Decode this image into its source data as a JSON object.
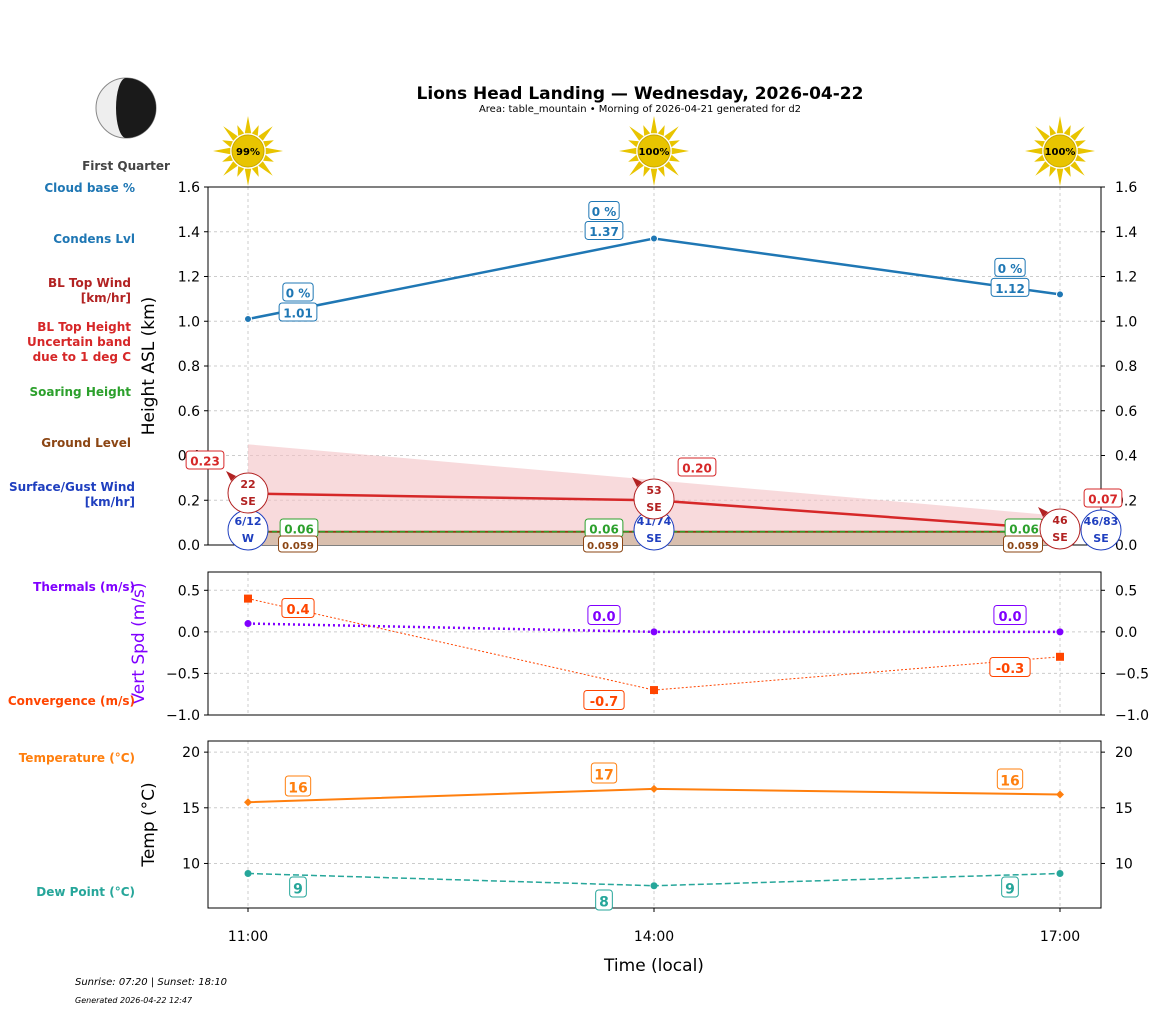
{
  "header": {
    "title": "Lions Head Landing — Wednesday, 2026-04-22",
    "subtitle": "Area: table_mountain • Morning of 2026-04-21 generated for d2"
  },
  "moon": {
    "phase": "First Quarter",
    "icon": "moon-first-quarter-icon"
  },
  "sun_icons": [
    "99%",
    "100%",
    "100%"
  ],
  "footer": {
    "sun_times": "Sunrise: 07:20 | Sunset: 18:10",
    "generated": "Generated 2026-04-22 12:47"
  },
  "legend_labels": {
    "cloud_base": "Cloud base %",
    "condens": "Condens Lvl",
    "bl_wind": "BL Top Wind\n[km/hr]",
    "bl_height": "BL Top Height\nUncertain band\ndue to 1 deg C",
    "soaring": "Soaring Height",
    "ground": "Ground Level",
    "surface_wind": "Surface/Gust Wind\n[km/hr]",
    "thermals": "Thermals (m/s)",
    "convergence": "Convergence (m/s)",
    "temperature": "Temperature (°C)",
    "dewpoint": "Dew Point (°C)"
  },
  "colors": {
    "condens": "#1f77b4",
    "bl_height": "#d62728",
    "bl_wind": "#b22222",
    "band": "#f4c2c4",
    "soaring": "#2ca02c",
    "ground": "#8b4513",
    "surface_wind": "#1f3fbf",
    "thermals": "#8000ff",
    "convergence": "#ff4500",
    "temperature": "#ff7f0e",
    "dewpoint": "#26a69a"
  },
  "chart_data": [
    {
      "type": "line",
      "ylabel": "Height ASL (km)",
      "ylim": [
        0,
        1.6
      ],
      "yticks": [
        "0.0",
        "0.2",
        "0.4",
        "0.6",
        "0.8",
        "1.0",
        "1.2",
        "1.4",
        "1.6"
      ],
      "grid": true,
      "x": [
        "11:00",
        "14:00",
        "17:00"
      ],
      "series": [
        {
          "key": "condens",
          "values": [
            1.01,
            1.37,
            1.12
          ],
          "labels": [
            "1.01",
            "1.37",
            "1.12"
          ],
          "cloud_base_labels": [
            "0 %",
            "0 %",
            "0 %"
          ]
        },
        {
          "key": "bl_height",
          "values": [
            0.23,
            0.2,
            0.07
          ],
          "labels": [
            "0.23",
            "0.20",
            "0.07"
          ],
          "band_low": [
            0.02,
            0.02,
            0.03
          ],
          "band_high": [
            0.45,
            0.29,
            0.13
          ]
        },
        {
          "key": "soaring",
          "values": [
            0.06,
            0.06,
            0.06
          ],
          "labels": [
            "0.06",
            "0.06",
            "0.06"
          ]
        },
        {
          "key": "ground",
          "values": [
            0.059,
            0.059,
            0.059
          ],
          "labels": [
            "0.059",
            "0.059",
            "0.059"
          ]
        }
      ],
      "bl_wind": [
        {
          "speed": "22",
          "dir": "SE"
        },
        {
          "speed": "53",
          "dir": "SE"
        },
        {
          "speed": "46",
          "dir": "SE"
        }
      ],
      "surface_wind": [
        {
          "speed": "6/12",
          "dir": "W"
        },
        {
          "speed": "41/74",
          "dir": "SE"
        },
        {
          "speed": "46/83",
          "dir": "SE"
        }
      ]
    },
    {
      "type": "line",
      "ylabel": "Vert Spd (m/s)",
      "ylim": [
        -1.0,
        0.72
      ],
      "yticks": [
        "0.5",
        "0.0",
        "−0.5",
        "−1.0"
      ],
      "grid": true,
      "x": [
        "11:00",
        "14:00",
        "17:00"
      ],
      "series": [
        {
          "key": "thermals",
          "values": [
            0.1,
            0.0,
            0.0
          ],
          "labels": [
            "",
            "0.0",
            "0.0"
          ]
        },
        {
          "key": "convergence",
          "values": [
            0.4,
            -0.7,
            -0.3
          ],
          "labels": [
            "0.4",
            "-0.7",
            "-0.3"
          ]
        }
      ]
    },
    {
      "type": "line",
      "ylabel": "Temp (°C)",
      "xlabel": "Time (local)",
      "ylim": [
        6,
        21
      ],
      "yticks": [
        "10",
        "15",
        "20"
      ],
      "grid": true,
      "x": [
        "11:00",
        "14:00",
        "17:00"
      ],
      "series": [
        {
          "key": "temperature",
          "values": [
            15.5,
            16.7,
            16.2
          ],
          "labels": [
            "16",
            "17",
            "16"
          ]
        },
        {
          "key": "dewpoint",
          "values": [
            9.1,
            8.0,
            9.1
          ],
          "labels": [
            "9",
            "8",
            "9"
          ]
        }
      ]
    }
  ]
}
